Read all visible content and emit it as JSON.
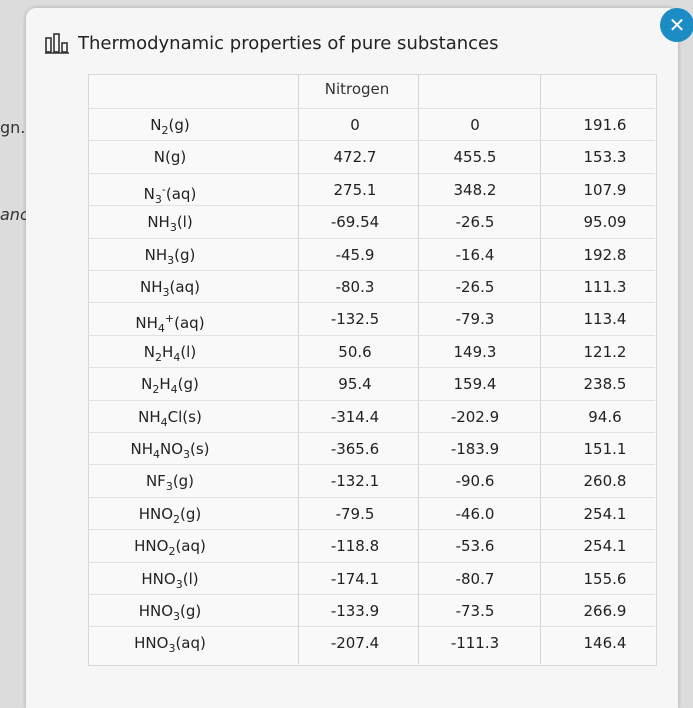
{
  "background": {
    "left_fragments": [
      "gn.",
      "anc"
    ]
  },
  "dialog": {
    "title": "Thermodynamic properties of pure substances",
    "title_icon": "bar-chart-icon",
    "close_icon": "close-icon",
    "accent_color": "#1c8cc5"
  },
  "table": {
    "group_header": "Nitrogen",
    "rows": [
      {
        "substance": [
          [
            "N",
            ""
          ],
          [
            "2",
            "sub"
          ],
          [
            "(g)",
            ""
          ]
        ],
        "h": "0",
        "g": "0",
        "s": "191.6"
      },
      {
        "substance": [
          [
            "N(g)",
            ""
          ]
        ],
        "h": "472.7",
        "g": "455.5",
        "s": "153.3"
      },
      {
        "substance": [
          [
            "N",
            ""
          ],
          [
            "3",
            "sub"
          ],
          [
            "-",
            "sup"
          ],
          [
            "(aq)",
            ""
          ]
        ],
        "h": "275.1",
        "g": "348.2",
        "s": "107.9"
      },
      {
        "substance": [
          [
            "NH",
            ""
          ],
          [
            "3",
            "sub"
          ],
          [
            "(l)",
            ""
          ]
        ],
        "h": "-69.54",
        "g": "-26.5",
        "s": "95.09"
      },
      {
        "substance": [
          [
            "NH",
            ""
          ],
          [
            "3",
            "sub"
          ],
          [
            "(g)",
            ""
          ]
        ],
        "h": "-45.9",
        "g": "-16.4",
        "s": "192.8"
      },
      {
        "substance": [
          [
            "NH",
            ""
          ],
          [
            "3",
            "sub"
          ],
          [
            "(aq)",
            ""
          ]
        ],
        "h": "-80.3",
        "g": "-26.5",
        "s": "111.3"
      },
      {
        "substance": [
          [
            "NH",
            ""
          ],
          [
            "4",
            "sub"
          ],
          [
            "+",
            "sup"
          ],
          [
            "(aq)",
            ""
          ]
        ],
        "h": "-132.5",
        "g": "-79.3",
        "s": "113.4"
      },
      {
        "substance": [
          [
            "N",
            ""
          ],
          [
            "2",
            "sub"
          ],
          [
            "H",
            ""
          ],
          [
            "4",
            "sub"
          ],
          [
            "(l)",
            ""
          ]
        ],
        "h": "50.6",
        "g": "149.3",
        "s": "121.2"
      },
      {
        "substance": [
          [
            "N",
            ""
          ],
          [
            "2",
            "sub"
          ],
          [
            "H",
            ""
          ],
          [
            "4",
            "sub"
          ],
          [
            "(g)",
            ""
          ]
        ],
        "h": "95.4",
        "g": "159.4",
        "s": "238.5"
      },
      {
        "substance": [
          [
            "NH",
            ""
          ],
          [
            "4",
            "sub"
          ],
          [
            "Cl(s)",
            ""
          ]
        ],
        "h": "-314.4",
        "g": "-202.9",
        "s": "94.6"
      },
      {
        "substance": [
          [
            "NH",
            ""
          ],
          [
            "4",
            "sub"
          ],
          [
            "NO",
            ""
          ],
          [
            "3",
            "sub"
          ],
          [
            "(s)",
            ""
          ]
        ],
        "h": "-365.6",
        "g": "-183.9",
        "s": "151.1"
      },
      {
        "substance": [
          [
            "NF",
            ""
          ],
          [
            "3",
            "sub"
          ],
          [
            "(g)",
            ""
          ]
        ],
        "h": "-132.1",
        "g": "-90.6",
        "s": "260.8"
      },
      {
        "substance": [
          [
            "HNO",
            ""
          ],
          [
            "2",
            "sub"
          ],
          [
            "(g)",
            ""
          ]
        ],
        "h": "-79.5",
        "g": "-46.0",
        "s": "254.1"
      },
      {
        "substance": [
          [
            "HNO",
            ""
          ],
          [
            "2",
            "sub"
          ],
          [
            "(aq)",
            ""
          ]
        ],
        "h": "-118.8",
        "g": "-53.6",
        "s": "254.1"
      },
      {
        "substance": [
          [
            "HNO",
            ""
          ],
          [
            "3",
            "sub"
          ],
          [
            "(l)",
            ""
          ]
        ],
        "h": "-174.1",
        "g": "-80.7",
        "s": "155.6"
      },
      {
        "substance": [
          [
            "HNO",
            ""
          ],
          [
            "3",
            "sub"
          ],
          [
            "(g)",
            ""
          ]
        ],
        "h": "-133.9",
        "g": "-73.5",
        "s": "266.9"
      },
      {
        "substance": [
          [
            "HNO",
            ""
          ],
          [
            "3",
            "sub"
          ],
          [
            "(aq)",
            ""
          ]
        ],
        "h": "-207.4",
        "g": "-111.3",
        "s": "146.4"
      }
    ]
  }
}
